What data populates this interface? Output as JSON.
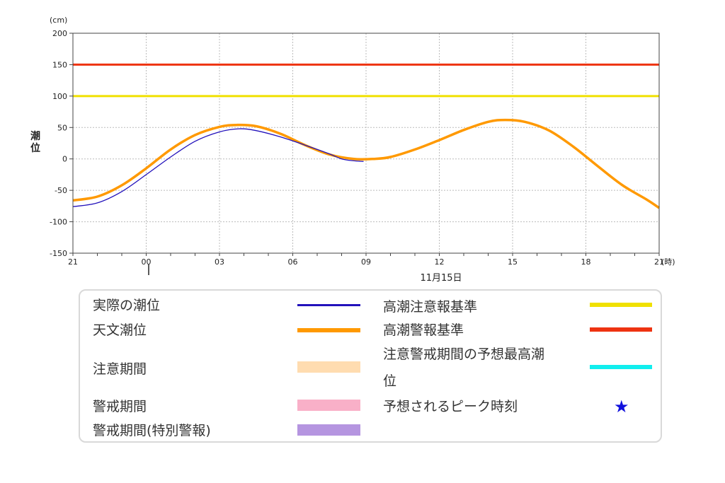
{
  "chart_data": {
    "type": "line",
    "y_unit": "(cm)",
    "x_unit": "(時)",
    "ylabel": "潮位",
    "date_label": "11月15日",
    "x_ticks": [
      "21",
      "00",
      "03",
      "06",
      "09",
      "12",
      "15",
      "18",
      "21"
    ],
    "x_tick_hours": [
      -3,
      0,
      3,
      6,
      9,
      12,
      15,
      18,
      21
    ],
    "xlim": [
      -3,
      21
    ],
    "ylim": [
      -150,
      200
    ],
    "y_ticks": [
      -150,
      -100,
      -50,
      0,
      50,
      100,
      150,
      200
    ],
    "y_tick_labels": [
      "-150",
      "-100",
      "-50",
      "0",
      "50",
      "100",
      "150",
      "200"
    ],
    "grid": true,
    "reference_lines": [
      {
        "name": "高潮注意報基準",
        "y": 100,
        "color": "#f0e000"
      },
      {
        "name": "高潮警報基準",
        "y": 150,
        "color": "#ee3311"
      }
    ],
    "series": [
      {
        "name": "天文潮位",
        "color": "#ff9900",
        "x": [
          -3,
          -2,
          -1,
          0,
          1,
          2,
          3,
          3.7,
          4.5,
          5.5,
          6.5,
          7.5,
          8.5,
          9.3,
          10,
          11,
          12,
          13,
          14,
          14.7,
          15.5,
          16.5,
          17.5,
          18.5,
          19.5,
          20.5,
          21
        ],
        "y": [
          -66,
          -60,
          -42,
          -15,
          15,
          38,
          51,
          54,
          52,
          40,
          22,
          7,
          0,
          0,
          3,
          15,
          30,
          46,
          59,
          62,
          59,
          45,
          19,
          -12,
          -42,
          -65,
          -78
        ]
      },
      {
        "name": "実際の潮位",
        "color": "#2211bb",
        "x": [
          -3,
          -2,
          -1,
          0,
          1,
          2,
          3,
          3.8,
          4.5,
          5.5,
          6.5,
          7.5,
          8,
          8.5,
          8.9
        ],
        "y": [
          -76,
          -70,
          -52,
          -25,
          3,
          28,
          43,
          48,
          45,
          35,
          22,
          8,
          0,
          -3,
          -4
        ]
      }
    ]
  },
  "legend": {
    "col1": [
      {
        "label": "実際の潮位",
        "color": "#2211bb",
        "kind": "line"
      },
      {
        "label": "天文潮位",
        "color": "#ff9900",
        "kind": "thickline"
      },
      {
        "label": "注意期間",
        "color": "#ffdcb0",
        "kind": "block"
      },
      {
        "label": "警戒期間",
        "color": "#f9b0c8",
        "kind": "block"
      },
      {
        "label": "警戒期間(特別警報)",
        "color": "#b595e0",
        "kind": "block"
      }
    ],
    "col2": [
      {
        "label": "高潮注意報基準",
        "color": "#f0e000",
        "kind": "thickline"
      },
      {
        "label": "高潮警報基準",
        "color": "#ee3311",
        "kind": "thickline"
      },
      {
        "label_line1": "注意警戒期間の予想最高潮",
        "label_line2": "位",
        "color": "#11eeee",
        "kind": "thickline"
      },
      {
        "label": "予想されるピーク時刻",
        "color": "#1111dd",
        "kind": "star",
        "icon": "star-icon"
      }
    ]
  }
}
